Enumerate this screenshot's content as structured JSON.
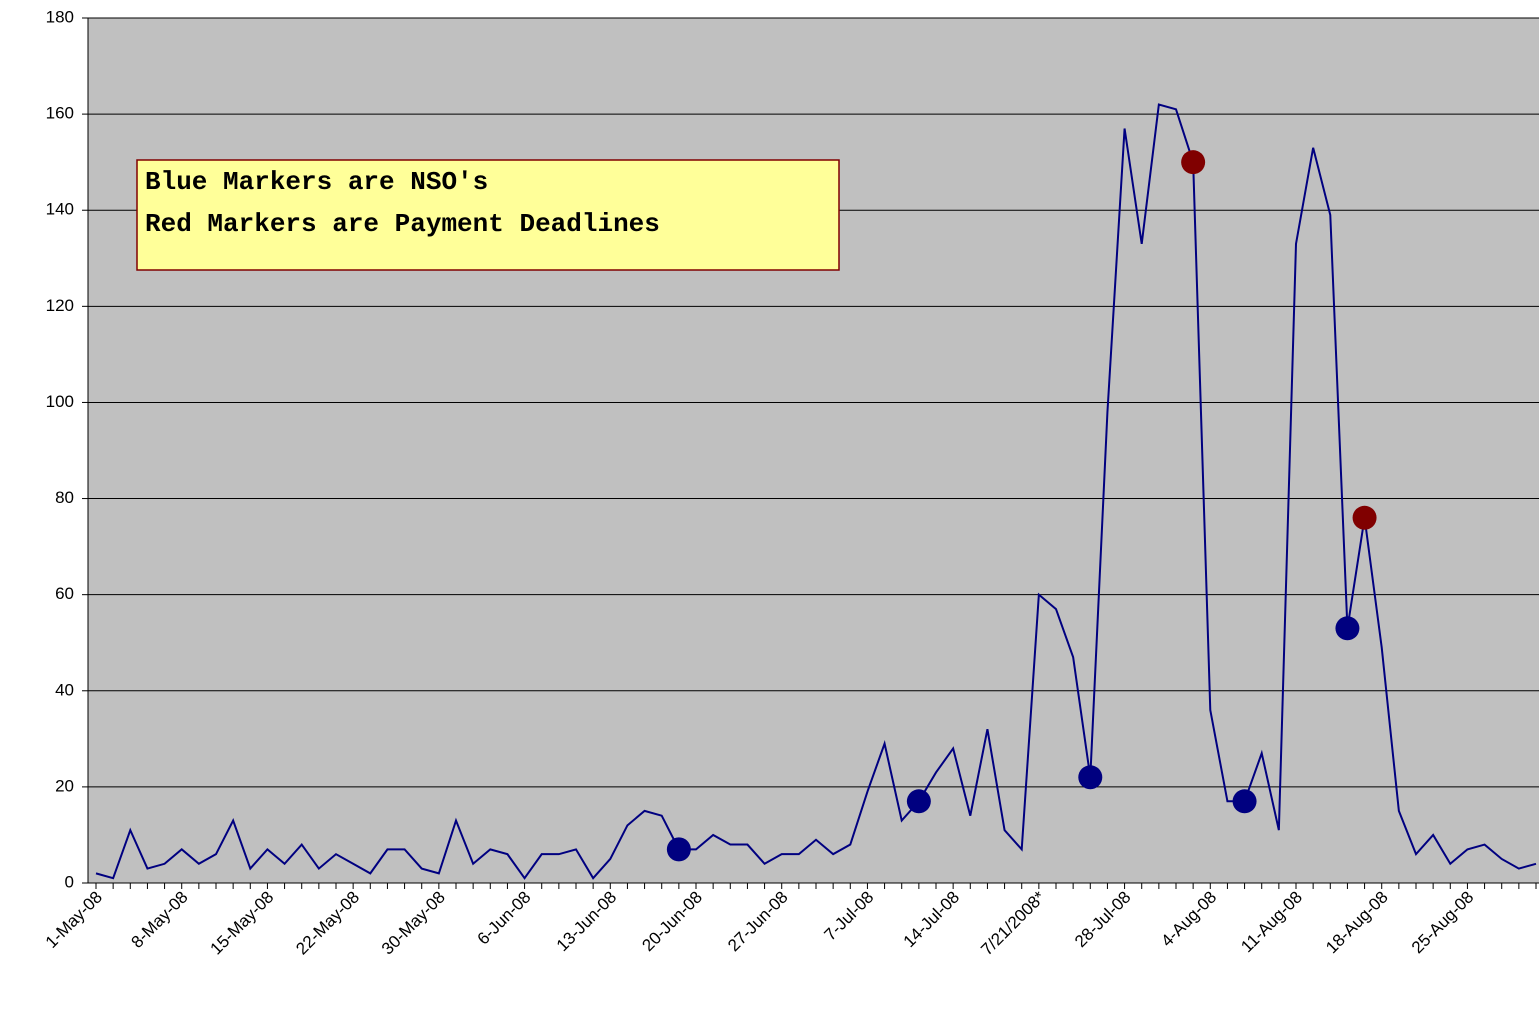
{
  "chart_data": {
    "type": "line",
    "annotation": [
      "Blue Markers are NSO's",
      "Red Markers are Payment Deadlines"
    ],
    "categories": [
      "1-May-08",
      null,
      null,
      null,
      null,
      "8-May-08",
      null,
      null,
      null,
      null,
      "15-May-08",
      null,
      null,
      null,
      null,
      "22-May-08",
      null,
      null,
      null,
      null,
      "30-May-08",
      null,
      null,
      null,
      null,
      "6-Jun-08",
      null,
      null,
      null,
      null,
      "13-Jun-08",
      null,
      null,
      null,
      null,
      "20-Jun-08",
      null,
      null,
      null,
      null,
      "27-Jun-08",
      null,
      null,
      null,
      null,
      "7-Jul-08",
      null,
      null,
      null,
      null,
      "14-Jul-08",
      null,
      null,
      null,
      null,
      "7/21/2008*",
      null,
      null,
      null,
      null,
      "28-Jul-08",
      null,
      null,
      null,
      null,
      "4-Aug-08",
      null,
      null,
      null,
      null,
      "11-Aug-08",
      null,
      null,
      null,
      null,
      "18-Aug-08",
      null,
      null,
      null,
      null,
      "25-Aug-08",
      null,
      null,
      null,
      null
    ],
    "series": [
      {
        "color": "#000080",
        "values": [
          2,
          1,
          11,
          3,
          4,
          7,
          4,
          6,
          13,
          3,
          7,
          4,
          8,
          3,
          6,
          4,
          2,
          7,
          7,
          3,
          2,
          13,
          4,
          7,
          6,
          1,
          6,
          6,
          7,
          1,
          5,
          12,
          15,
          14,
          7,
          7,
          10,
          8,
          8,
          4,
          6,
          6,
          9,
          6,
          8,
          19,
          29,
          13,
          17,
          23,
          28,
          14,
          32,
          11,
          7,
          60,
          57,
          47,
          22,
          98,
          157,
          133,
          162,
          161,
          150,
          36,
          17,
          17,
          27,
          11,
          133,
          153,
          139,
          53,
          76,
          49,
          15,
          6,
          10,
          4,
          7,
          8,
          5,
          3,
          4
        ]
      },
      {
        "color": "#000080",
        "marker_only": true,
        "values": [
          null,
          null,
          null,
          null,
          null,
          null,
          null,
          null,
          null,
          null,
          null,
          null,
          null,
          null,
          null,
          null,
          null,
          null,
          null,
          null,
          null,
          null,
          null,
          null,
          null,
          null,
          null,
          null,
          null,
          null,
          null,
          null,
          null,
          null,
          7,
          null,
          null,
          null,
          null,
          null,
          null,
          null,
          null,
          null,
          null,
          null,
          null,
          null,
          17,
          null,
          null,
          null,
          null,
          null,
          null,
          null,
          null,
          null,
          22,
          null,
          null,
          null,
          null,
          null,
          null,
          null,
          null,
          17,
          null,
          null,
          null,
          null,
          null,
          53,
          null,
          null,
          null,
          null,
          null,
          null,
          null,
          null,
          null,
          null,
          null
        ]
      },
      {
        "color": "#800000",
        "marker_only": true,
        "values": [
          null,
          null,
          null,
          null,
          null,
          null,
          null,
          null,
          null,
          null,
          null,
          null,
          null,
          null,
          null,
          null,
          null,
          null,
          null,
          null,
          null,
          null,
          null,
          null,
          null,
          null,
          null,
          null,
          null,
          null,
          null,
          null,
          null,
          null,
          null,
          null,
          null,
          null,
          null,
          null,
          null,
          null,
          null,
          null,
          null,
          null,
          null,
          null,
          null,
          null,
          null,
          null,
          null,
          null,
          null,
          null,
          null,
          null,
          null,
          null,
          null,
          null,
          null,
          null,
          150,
          null,
          null,
          null,
          null,
          null,
          null,
          null,
          null,
          null,
          76,
          null,
          null,
          null,
          null,
          null,
          null,
          null,
          null,
          null,
          null
        ]
      }
    ],
    "ylim": [
      0,
      180
    ],
    "yticks": [
      0,
      20,
      40,
      60,
      80,
      100,
      120,
      140,
      160,
      180
    ],
    "grid": true,
    "background": "#c0c0c0"
  }
}
